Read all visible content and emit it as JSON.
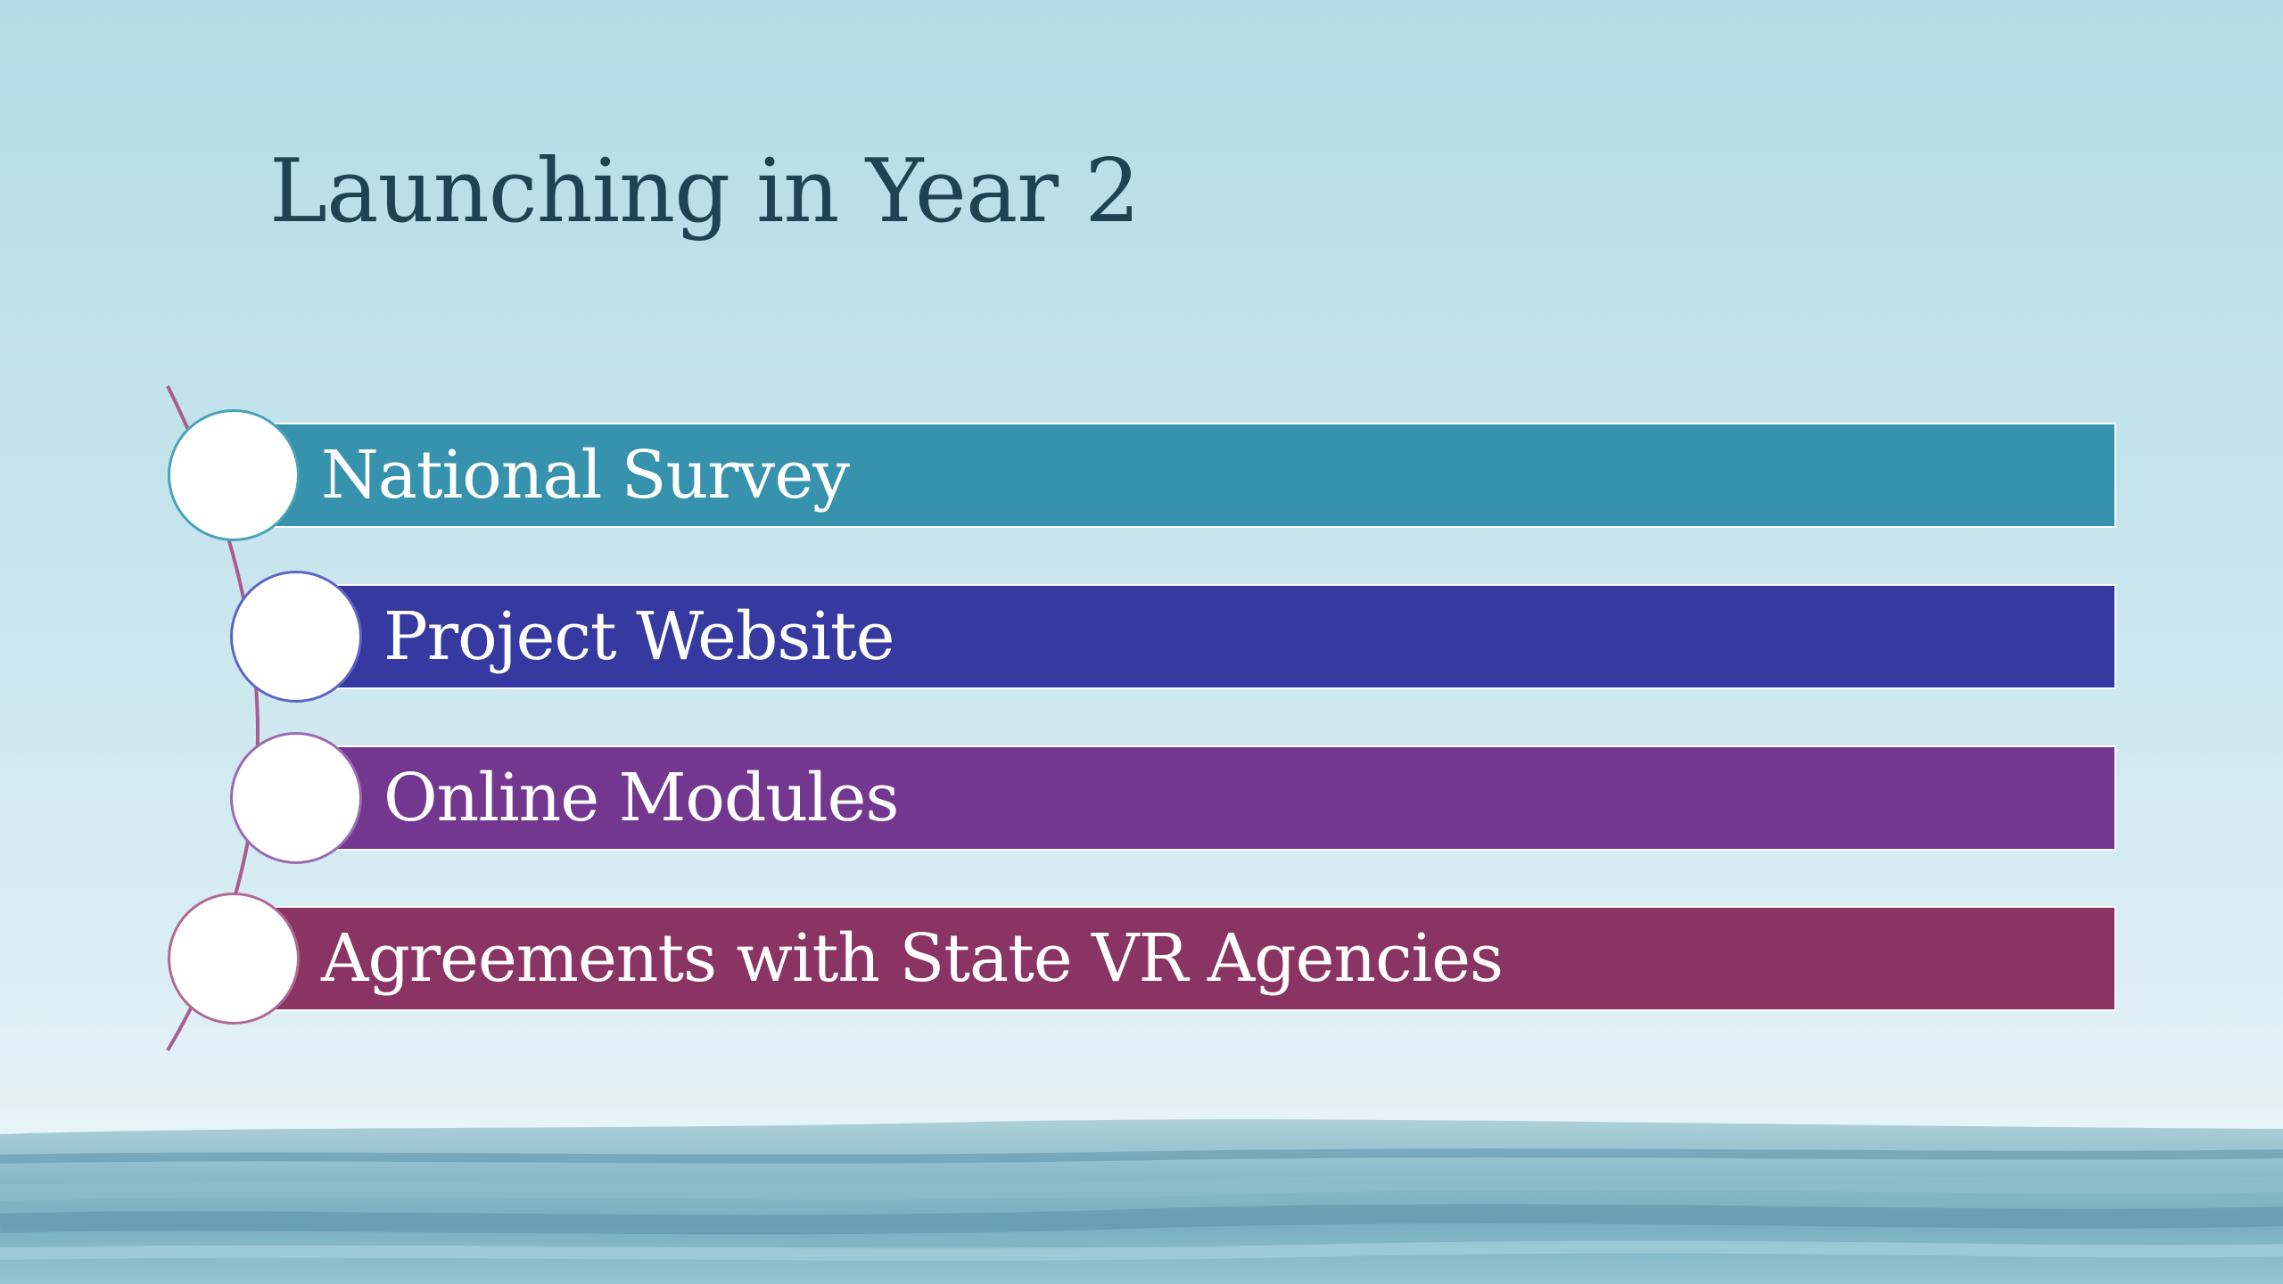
{
  "slide": {
    "title": "Launching in Year 2",
    "items": [
      {
        "label": "National Survey",
        "color": "#3692ad"
      },
      {
        "label": "Project Website",
        "color": "#3539a0"
      },
      {
        "label": "Online Modules",
        "color": "#73378f"
      },
      {
        "label": "Agreements with State VR Agencies",
        "color": "#8a3463"
      }
    ],
    "arc_color": "#a95d8f",
    "node_border_colors": [
      "#4aa2b6",
      "#5e66c4",
      "#9a6bb3",
      "#b06a92"
    ]
  }
}
